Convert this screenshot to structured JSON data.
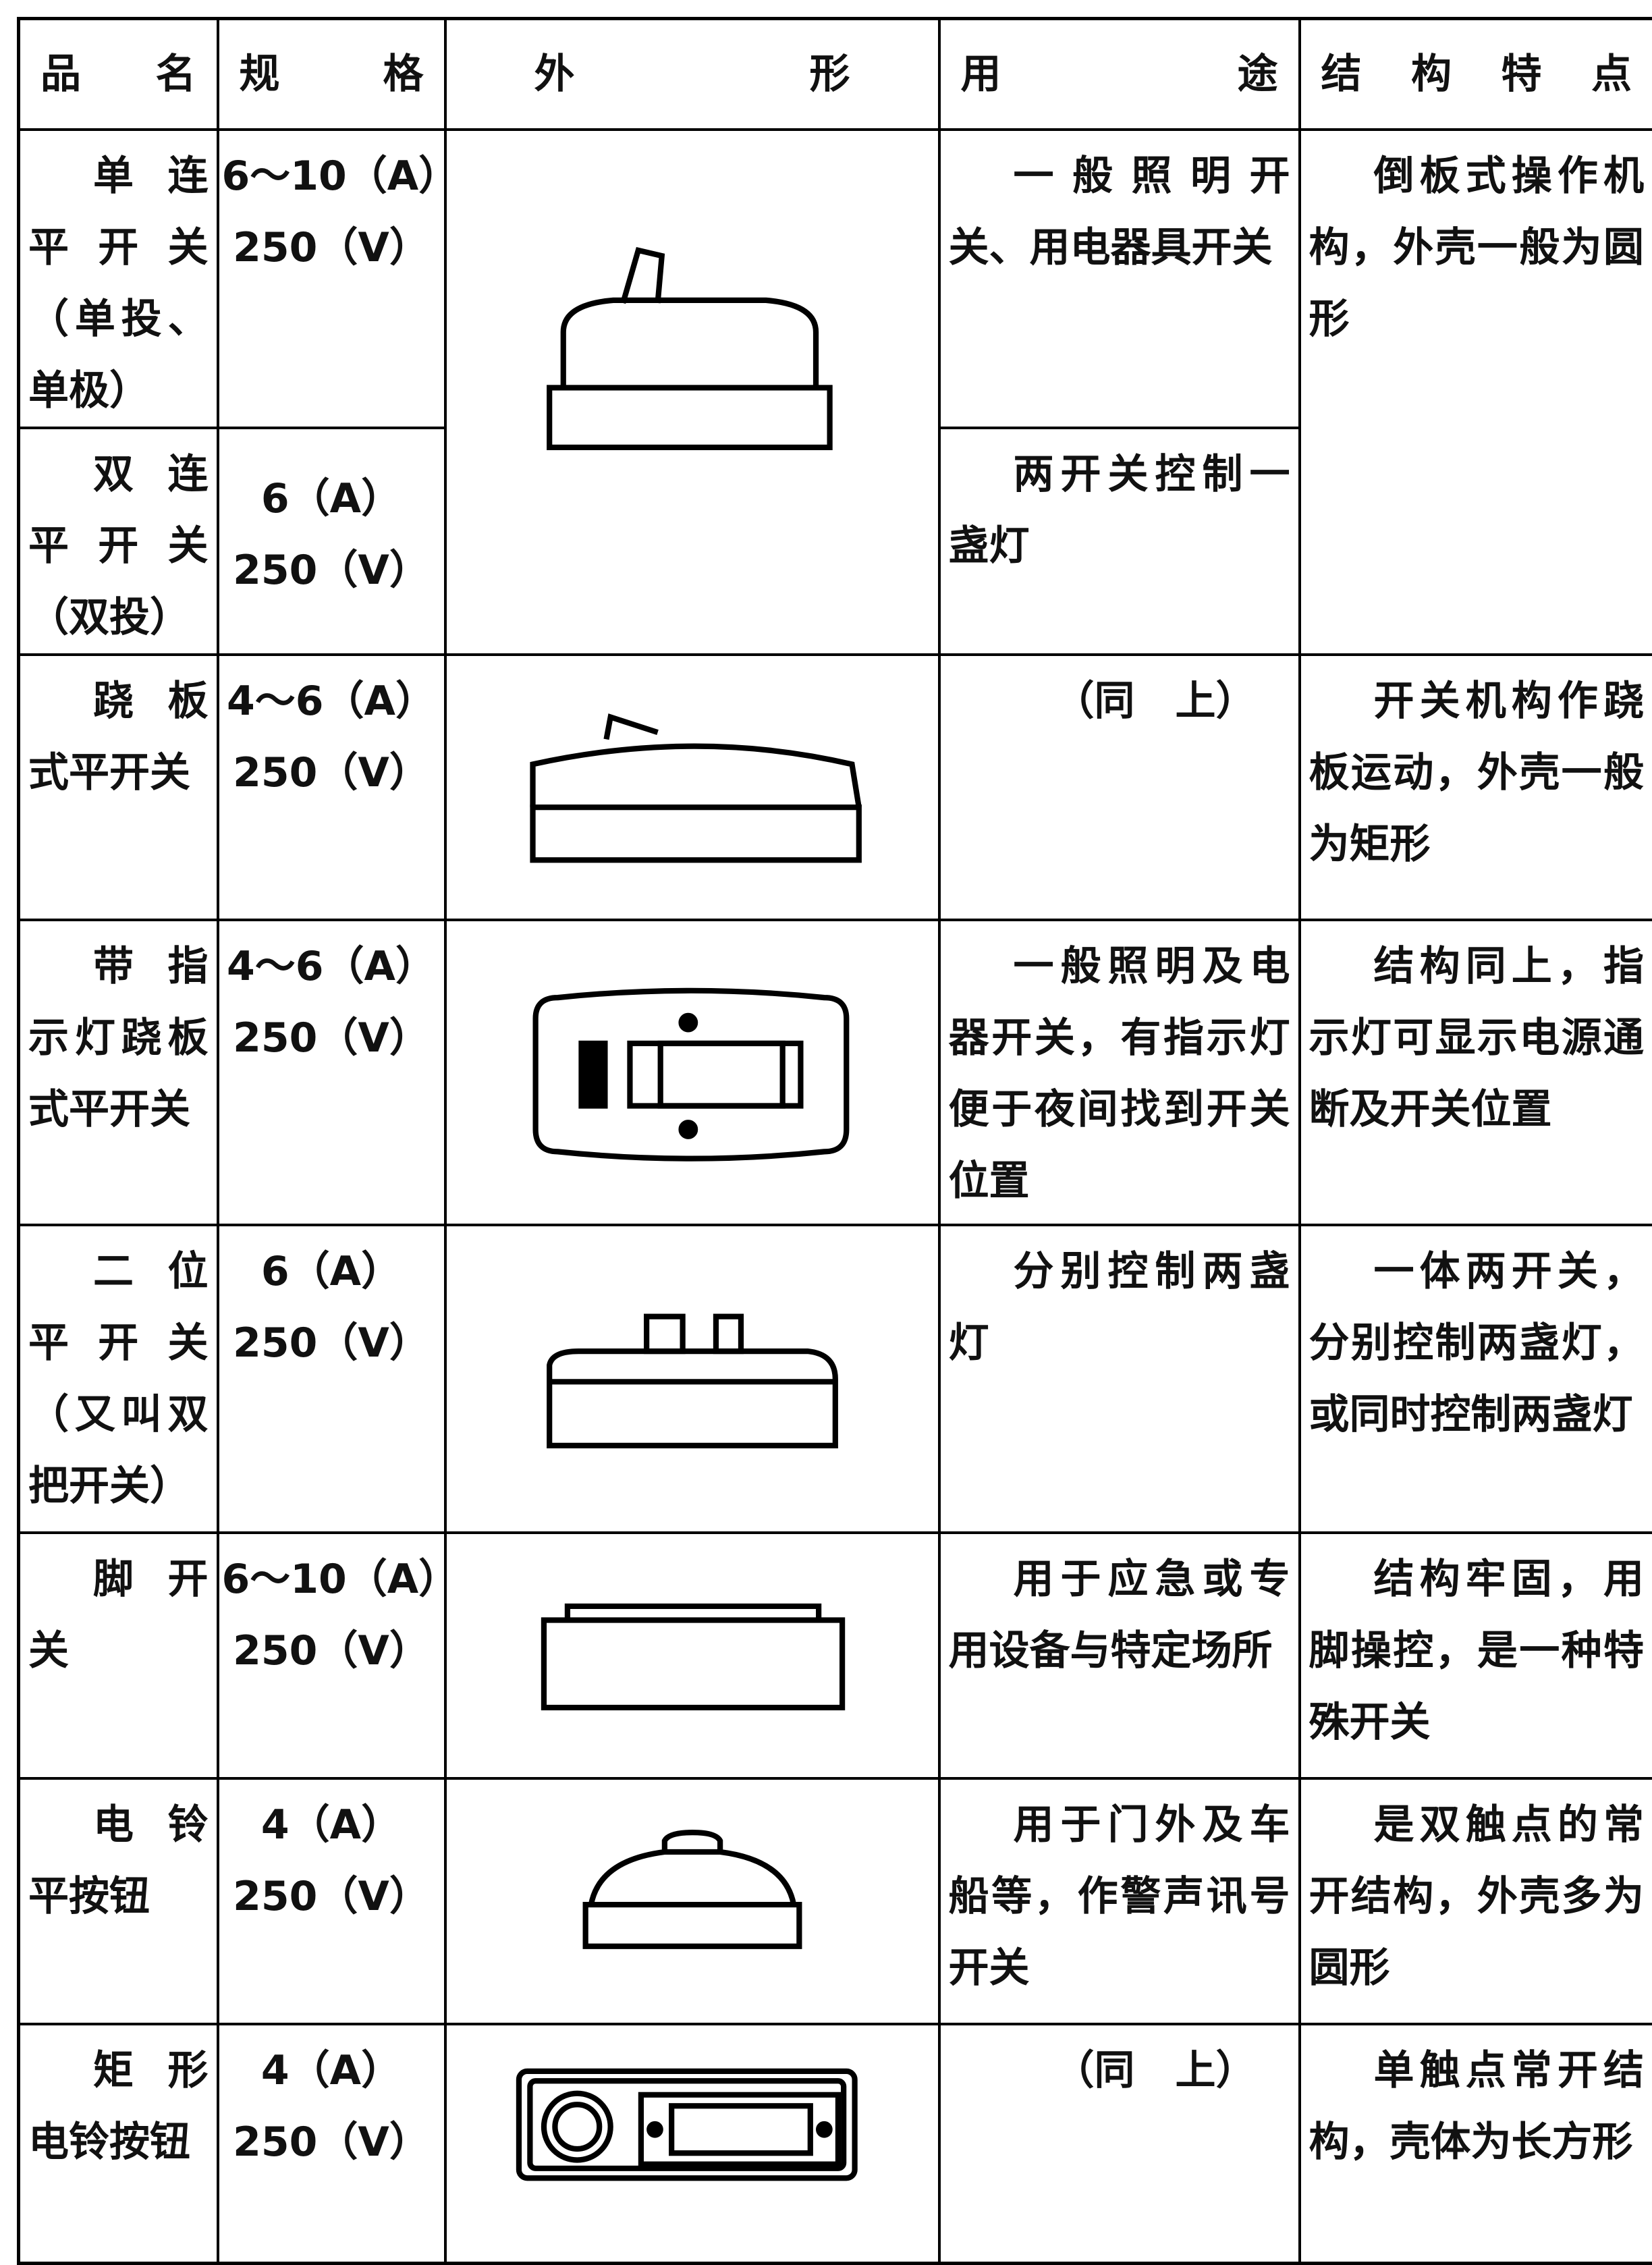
{
  "table": {
    "header": [
      "品 名",
      "规 格",
      "外 形",
      "用 途",
      "结 构 特 点"
    ],
    "rows": [
      {
        "name": "单连平开关（单投、单极）",
        "spec": [
          "6～10（A）",
          "250（V）"
        ],
        "use": "一般照明开关、用电器具开关",
        "feature": "倒板式操作机构，外壳一般为圆形"
      },
      {
        "name": "双连平开关（双投）",
        "spec": [
          "6（A）",
          "250（V）"
        ],
        "use": "两开关控制一盏灯"
      },
      {
        "name": "跷板式平开关",
        "spec": [
          "4～6（A）",
          "250（V）"
        ],
        "use": "（同　上）",
        "feature": "开关机构作跷板运动，外壳一般为矩形"
      },
      {
        "name": "带指示灯跷板式平开关",
        "spec": [
          "4～6（A）",
          "250（V）"
        ],
        "use": "一般照明及电器开关，有指示灯便于夜间找到开关位置",
        "feature": "结构同上，指示灯可显示电源通断及开关位置"
      },
      {
        "name": "二位平开关（又叫双把开关）",
        "spec": [
          "6（A）",
          "250（V）"
        ],
        "use": "分别控制两盏灯",
        "feature": "一体两开关，分别控制两盏灯，或同时控制两盏灯"
      },
      {
        "name": "脚开关",
        "spec": [
          "6～10（A）",
          "250（V）"
        ],
        "use": "用于应急或专用设备与特定场所",
        "feature": "结构牢固，用脚操控，是一种特殊开关"
      },
      {
        "name": "电铃平按钮",
        "spec": [
          "4（A）",
          "250（V）"
        ],
        "use": "用于门外及车船等，作警声讯号开关",
        "feature": "是双触点的常开结构，外壳多为圆形"
      },
      {
        "name": "矩形电铃按钮",
        "spec": [
          "4（A）",
          "250（V）"
        ],
        "use": "（同　上）",
        "feature": "单触点常开结构，壳体为长方形"
      }
    ]
  }
}
